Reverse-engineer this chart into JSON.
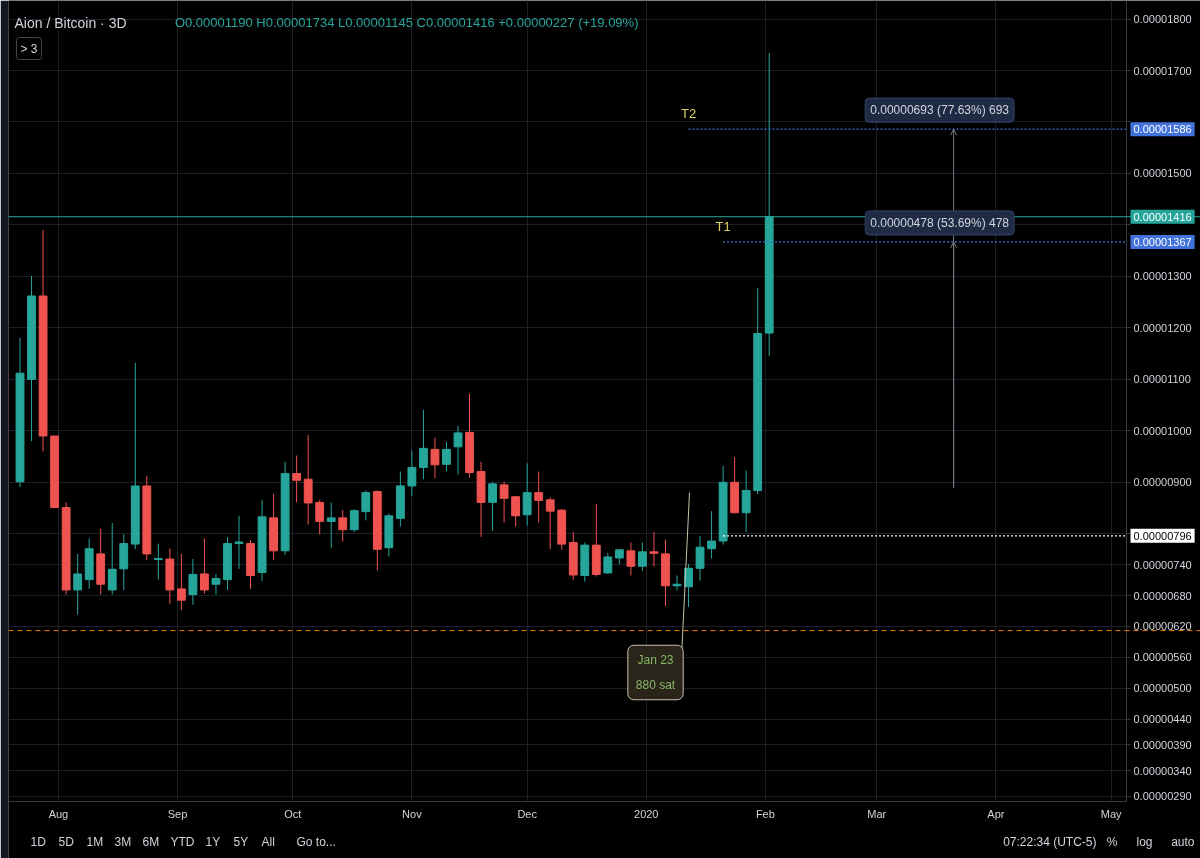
{
  "chart_data": {
    "type": "candlestick",
    "title": "Aion / Bitcoin · 3D",
    "subtitle": "O0.00001190 H0.00001734 L0.00001145 C0.00001416 +0.00000227 (+19.09%)",
    "x": [
      "2019-07-22",
      "2019-07-25",
      "2019-07-28",
      "2019-07-31",
      "2019-08-03",
      "2019-08-06",
      "2019-08-09",
      "2019-08-12",
      "2019-08-15",
      "2019-08-18",
      "2019-08-21",
      "2019-08-24",
      "2019-08-27",
      "2019-08-30",
      "2019-09-02",
      "2019-09-05",
      "2019-09-08",
      "2019-09-11",
      "2019-09-14",
      "2019-09-17",
      "2019-09-20",
      "2019-09-23",
      "2019-09-26",
      "2019-09-29",
      "2019-10-02",
      "2019-10-05",
      "2019-10-08",
      "2019-10-11",
      "2019-10-14",
      "2019-10-17",
      "2019-10-20",
      "2019-10-23",
      "2019-10-26",
      "2019-10-29",
      "2019-11-01",
      "2019-11-04",
      "2019-11-07",
      "2019-11-10",
      "2019-11-13",
      "2019-11-16",
      "2019-11-19",
      "2019-11-22",
      "2019-11-25",
      "2019-11-28",
      "2019-12-01",
      "2019-12-04",
      "2019-12-07",
      "2019-12-10",
      "2019-12-13",
      "2019-12-16",
      "2019-12-19",
      "2019-12-22",
      "2019-12-25",
      "2019-12-28",
      "2019-12-31",
      "2020-01-03",
      "2020-01-06",
      "2020-01-09",
      "2020-01-12",
      "2020-01-15",
      "2020-01-18",
      "2020-01-21",
      "2020-01-24",
      "2020-01-27",
      "2020-01-30",
      "2020-02-02"
    ],
    "ohlc": [
      [
        9.01e-06,
        1.181e-05,
        8.91e-06,
        1.112e-05
      ],
      [
        1.1e-05,
        1.301e-05,
        9.8e-06,
        1.262e-05
      ],
      [
        1.262e-05,
        1.39e-05,
        9.6e-06,
        9.9e-06
      ],
      [
        9.9e-06,
        9.9e-06,
        8.51e-06,
        8.51e-06
      ],
      [
        8.51e-06,
        8.61e-06,
        6.82e-06,
        6.91e-06
      ],
      [
        6.91e-06,
        7.61e-06,
        6.43e-06,
        7.22e-06
      ],
      [
        7.11e-06,
        7.91e-06,
        6.93e-06,
        7.71e-06
      ],
      [
        7.61e-06,
        8.1e-06,
        6.82e-06,
        7.02e-06
      ],
      [
        6.91e-06,
        8.21e-06,
        6.82e-06,
        7.31e-06
      ],
      [
        7.32e-06,
        7.99e-06,
        6.91e-06,
        7.81e-06
      ],
      [
        7.8e-06,
        1.132e-05,
        7.7e-06,
        8.93e-06
      ],
      [
        8.93e-06,
        9.13e-06,
        7.49e-06,
        7.61e-06
      ],
      [
        7.5e-06,
        7.81e-06,
        7.11e-06,
        7.52e-06
      ],
      [
        7.51e-06,
        7.71e-06,
        6.64e-06,
        6.91e-06
      ],
      [
        6.93e-06,
        7.61e-06,
        6.52e-06,
        6.71e-06
      ],
      [
        6.82e-06,
        7.51e-06,
        6.62e-06,
        7.21e-06
      ],
      [
        7.22e-06,
        7.91e-06,
        6.84e-06,
        6.91e-06
      ],
      [
        7.02e-06,
        7.22e-06,
        6.82e-06,
        7.13e-06
      ],
      [
        7.11e-06,
        7.94e-06,
        6.91e-06,
        7.81e-06
      ],
      [
        7.81e-06,
        8.35e-06,
        7.32e-06,
        7.84e-06
      ],
      [
        7.81e-06,
        7.88e-06,
        6.93e-06,
        7.19e-06
      ],
      [
        7.25e-06,
        8.66e-06,
        7.08e-06,
        8.33e-06
      ],
      [
        8.31e-06,
        8.78e-06,
        7.49e-06,
        7.67e-06
      ],
      [
        7.67e-06,
        9.4e-06,
        7.59e-06,
        9.17e-06
      ],
      [
        9.17e-06,
        9.52e-06,
        8.61e-06,
        9.04e-06
      ],
      [
        9.06e-06,
        9.92e-06,
        8.18e-06,
        8.6e-06
      ],
      [
        8.61e-06,
        8.66e-06,
        7.99e-06,
        8.24e-06
      ],
      [
        8.24e-06,
        8.61e-06,
        7.72e-06,
        8.31e-06
      ],
      [
        8.31e-06,
        8.46e-06,
        7.85e-06,
        8.08e-06
      ],
      [
        8.08e-06,
        8.48e-06,
        8.03e-06,
        8.45e-06
      ],
      [
        8.43e-06,
        8.84e-06,
        8.26e-06,
        8.8e-06
      ],
      [
        8.82e-06,
        8.84e-06,
        7.29e-06,
        7.7e-06
      ],
      [
        7.73e-06,
        8.39e-06,
        7.56e-06,
        8.35e-06
      ],
      [
        8.3e-06,
        9.21e-06,
        8.14e-06,
        8.93e-06
      ],
      [
        8.93e-06,
        9.62e-06,
        8.73e-06,
        9.29e-06
      ],
      [
        9.29e-06,
        1.041e-05,
        9.06e-06,
        9.66e-06
      ],
      [
        9.64e-06,
        9.87e-06,
        9.08e-06,
        9.34e-06
      ],
      [
        9.35e-06,
        9.79e-06,
        9.21e-06,
        9.64e-06
      ],
      [
        9.69e-06,
        1.01e-05,
        9.15e-06,
        9.96e-06
      ],
      [
        9.97e-06,
        1.072e-05,
        9.09e-06,
        9.19e-06
      ],
      [
        9.21e-06,
        9.4e-06,
        7.94e-06,
        8.61e-06
      ],
      [
        8.61e-06,
        9.01e-06,
        8.06e-06,
        8.97e-06
      ],
      [
        8.95e-06,
        9.01e-06,
        8.22e-06,
        8.69e-06
      ],
      [
        8.72e-06,
        8.73e-06,
        8.14e-06,
        8.35e-06
      ],
      [
        8.37e-06,
        9.37e-06,
        8.16e-06,
        8.8e-06
      ],
      [
        8.8e-06,
        9.21e-06,
        8.22e-06,
        8.65e-06
      ],
      [
        8.66e-06,
        8.71e-06,
        7.7e-06,
        8.44e-06
      ],
      [
        8.46e-06,
        8.48e-06,
        7.69e-06,
        7.8e-06
      ],
      [
        7.83e-06,
        8.03e-06,
        7.11e-06,
        7.2e-06
      ],
      [
        7.19e-06,
        7.83e-06,
        7.07e-06,
        7.78e-06
      ],
      [
        7.78e-06,
        8.58e-06,
        7.17e-06,
        7.21e-06
      ],
      [
        7.24e-06,
        7.63e-06,
        7.22e-06,
        7.55e-06
      ],
      [
        7.53e-06,
        7.7e-06,
        7.41e-06,
        7.69e-06
      ],
      [
        7.67e-06,
        7.83e-06,
        7.19e-06,
        7.37e-06
      ],
      [
        7.37e-06,
        7.83e-06,
        7.28e-06,
        7.65e-06
      ],
      [
        7.65e-06,
        8.03e-06,
        7.37e-06,
        7.62e-06
      ],
      [
        7.61e-06,
        7.89e-06,
        6.6e-06,
        6.99e-06
      ],
      [
        6.99e-06,
        7.19e-06,
        6.9e-06,
        7.02e-06
      ],
      [
        6.97e-06,
        7.41e-06,
        6.58e-06,
        7.33e-06
      ],
      [
        7.33e-06,
        7.96e-06,
        7.09e-06,
        7.74e-06
      ],
      [
        7.71e-06,
        8.44e-06,
        7.52e-06,
        7.86e-06
      ],
      [
        7.86e-06,
        9.32e-06,
        7.79e-06,
        9e-06
      ],
      [
        9e-06,
        9.49e-06,
        8.4e-06,
        8.41e-06
      ],
      [
        8.41e-06,
        9.23e-06,
        8.03e-06,
        8.84e-06
      ],
      [
        8.84e-06,
        1.277e-05,
        8.77e-06,
        1.189e-05
      ],
      [
        1.19e-05,
        1.734e-05,
        1.145e-05,
        1.416e-05
      ]
    ],
    "colors": [
      "#26a69a",
      "#26a69a",
      "#ef5350",
      "#ef5350",
      "#ef5350",
      "#26a69a",
      "#26a69a",
      "#ef5350",
      "#26a69a",
      "#26a69a",
      "#26a69a",
      "#ef5350",
      "#26a69a",
      "#ef5350",
      "#ef5350",
      "#26a69a",
      "#ef5350",
      "#26a69a",
      "#26a69a",
      "#26a69a",
      "#ef5350",
      "#26a69a",
      "#ef5350",
      "#26a69a",
      "#ef5350",
      "#ef5350",
      "#ef5350",
      "#26a69a",
      "#ef5350",
      "#26a69a",
      "#26a69a",
      "#ef5350",
      "#26a69a",
      "#26a69a",
      "#26a69a",
      "#26a69a",
      "#ef5350",
      "#26a69a",
      "#26a69a",
      "#ef5350",
      "#ef5350",
      "#26a69a",
      "#ef5350",
      "#ef5350",
      "#26a69a",
      "#ef5350",
      "#ef5350",
      "#ef5350",
      "#ef5350",
      "#26a69a",
      "#ef5350",
      "#26a69a",
      "#26a69a",
      "#ef5350",
      "#26a69a",
      "#ef5350",
      "#ef5350",
      "#26a69a",
      "#26a69a",
      "#26a69a",
      "#26a69a",
      "#26a69a",
      "#ef5350",
      "#26a69a",
      "#26a69a",
      "#26a69a"
    ],
    "xlim": [
      "2019-07-19",
      "2020-05-05"
    ],
    "xticks": [
      {
        "value": "2019-08-01",
        "label": "Aug"
      },
      {
        "value": "2019-09-01",
        "label": "Sep"
      },
      {
        "value": "2019-10-01",
        "label": "Oct"
      },
      {
        "value": "2019-11-01",
        "label": "Nov"
      },
      {
        "value": "2019-12-01",
        "label": "Dec"
      },
      {
        "value": "2020-01-01",
        "label": "2020"
      },
      {
        "value": "2020-02-01",
        "label": "Feb"
      },
      {
        "value": "2020-03-01",
        "label": "Mar"
      },
      {
        "value": "2020-04-01",
        "label": "Apr"
      },
      {
        "value": "2020-05-01",
        "label": "May"
      }
    ],
    "ylim": [
      2.8e-06,
      1.836e-05
    ],
    "yticks": [
      {
        "value": 1.8e-05,
        "label": "0.00001800"
      },
      {
        "value": 1.7e-05,
        "label": "0.00001700"
      },
      {
        "value": 1.6e-05,
        "label": null
      },
      {
        "value": 1.5e-05,
        "label": "0.00001500"
      },
      {
        "value": 1.4e-05,
        "label": null
      },
      {
        "value": 1.3e-05,
        "label": "0.00001300"
      },
      {
        "value": 1.2e-05,
        "label": "0.00001200"
      },
      {
        "value": 1.1e-05,
        "label": "0.00001100"
      },
      {
        "value": 1e-05,
        "label": "0.00001000"
      },
      {
        "value": 9e-06,
        "label": "0.00000900"
      },
      {
        "value": 8e-06,
        "label": null
      },
      {
        "value": 7.4e-06,
        "label": "0.00000740"
      },
      {
        "value": 6.8e-06,
        "label": "0.00000680"
      },
      {
        "value": 6.2e-06,
        "label": "0.00000620"
      },
      {
        "value": 5.6e-06,
        "label": "0.00000560"
      },
      {
        "value": 5e-06,
        "label": "0.00000500"
      },
      {
        "value": 4.4e-06,
        "label": "0.00000440"
      },
      {
        "value": 3.9e-06,
        "label": "0.00000390"
      },
      {
        "value": 3.4e-06,
        "label": "0.00000340"
      },
      {
        "value": 2.9e-06,
        "label": "0.00000290"
      }
    ],
    "grid": true,
    "series": [
      {
        "type": "line",
        "name": "T2",
        "color": "#4272dc",
        "line_style": "dotted",
        "x": [
          "2020-01-12",
          "2020-05-05"
        ],
        "values": [
          1.586e-05,
          1.586e-05
        ],
        "value_labels": [
          null,
          "0.00001586"
        ]
      },
      {
        "type": "line",
        "name": "T1",
        "color": "#4272dc",
        "line_style": "dotted",
        "x": [
          "2020-01-21",
          "2020-05-05"
        ],
        "values": [
          1.367e-05,
          1.367e-05
        ],
        "value_labels": [
          null,
          "0.00001367"
        ]
      },
      {
        "type": "line",
        "color": "#ffffff",
        "line_style": "dotted",
        "x": [
          "2020-01-21",
          "2020-05-05"
        ],
        "values": [
          7.96e-06,
          7.96e-06
        ],
        "value_labels": [
          null,
          "0.00000796"
        ]
      },
      {
        "type": "line",
        "color": "#787b86",
        "x": [
          "2020-03-21",
          "2020-03-21"
        ],
        "values": [
          8.89e-06,
          1.367e-05
        ]
      },
      {
        "type": "line",
        "color": "#787b86",
        "x": [
          "2020-03-21",
          "2020-03-21"
        ],
        "values": [
          8.93e-06,
          1.586e-05
        ]
      }
    ],
    "ref_lines": [
      {
        "axis": "y",
        "value": 1.416e-05,
        "label": "0.00001416",
        "color": "#26a69a",
        "line_style": "solid"
      },
      {
        "axis": "y",
        "value": 6.12e-06,
        "color": "#f57c00",
        "line_style": "dashed"
      }
    ],
    "annotations": [
      "> 3",
      "Jan 23\n880 sat",
      {
        "text": "0.00000693 (77.63%) 693",
        "x": "2020-03-21",
        "y": 1.586e-05
      },
      {
        "text": "0.00000478 (53.69%) 478",
        "x": "2020-03-21",
        "y": 1.367e-05
      },
      "1D",
      "5D",
      "1M",
      "3M",
      "6M",
      "YTD",
      "1Y",
      "5Y",
      "All",
      "Go to...",
      "07:22:34 (UTC-5)",
      "%",
      "log",
      "auto"
    ]
  }
}
